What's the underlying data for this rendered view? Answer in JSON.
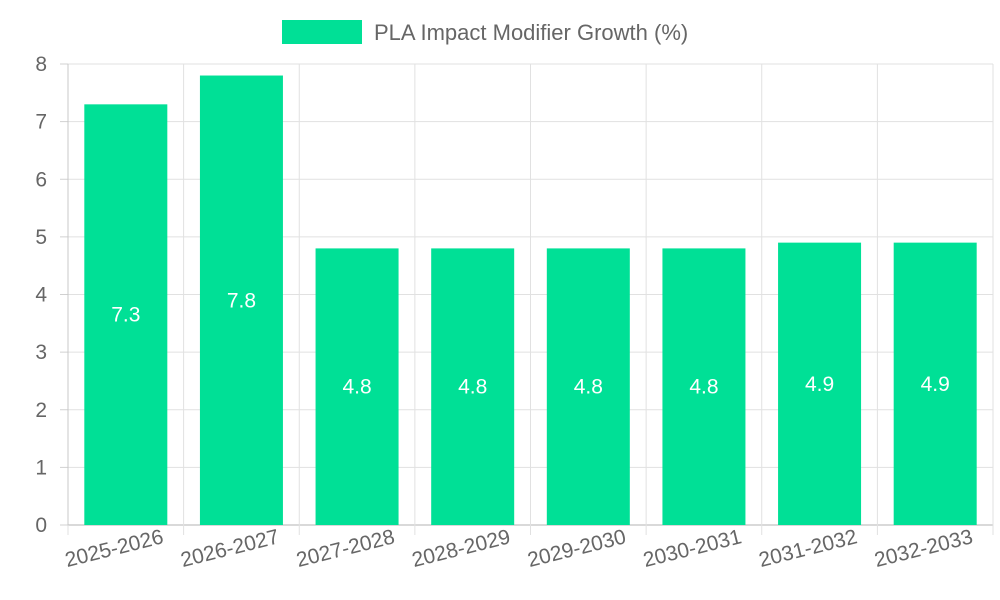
{
  "chart_data": {
    "type": "bar",
    "title": "",
    "xlabel": "",
    "ylabel": "",
    "categories": [
      "2025-2026",
      "2026-2027",
      "2027-2028",
      "2028-2029",
      "2029-2030",
      "2030-2031",
      "2031-2032",
      "2032-2033"
    ],
    "series": [
      {
        "name": "PLA Impact Modifier Growth (%)",
        "values": [
          7.3,
          7.8,
          4.8,
          4.8,
          4.8,
          4.8,
          4.9,
          4.9
        ],
        "color": "#00e096"
      }
    ],
    "data_labels": [
      "7.3",
      "7.8",
      "4.8",
      "4.8",
      "4.8",
      "4.8",
      "4.9",
      "4.9"
    ],
    "ylim": [
      0,
      8
    ],
    "yticks": [
      "0",
      "1",
      "2",
      "3",
      "4",
      "5",
      "6",
      "7",
      "8"
    ],
    "grid": true,
    "legend_position": "top-center"
  }
}
